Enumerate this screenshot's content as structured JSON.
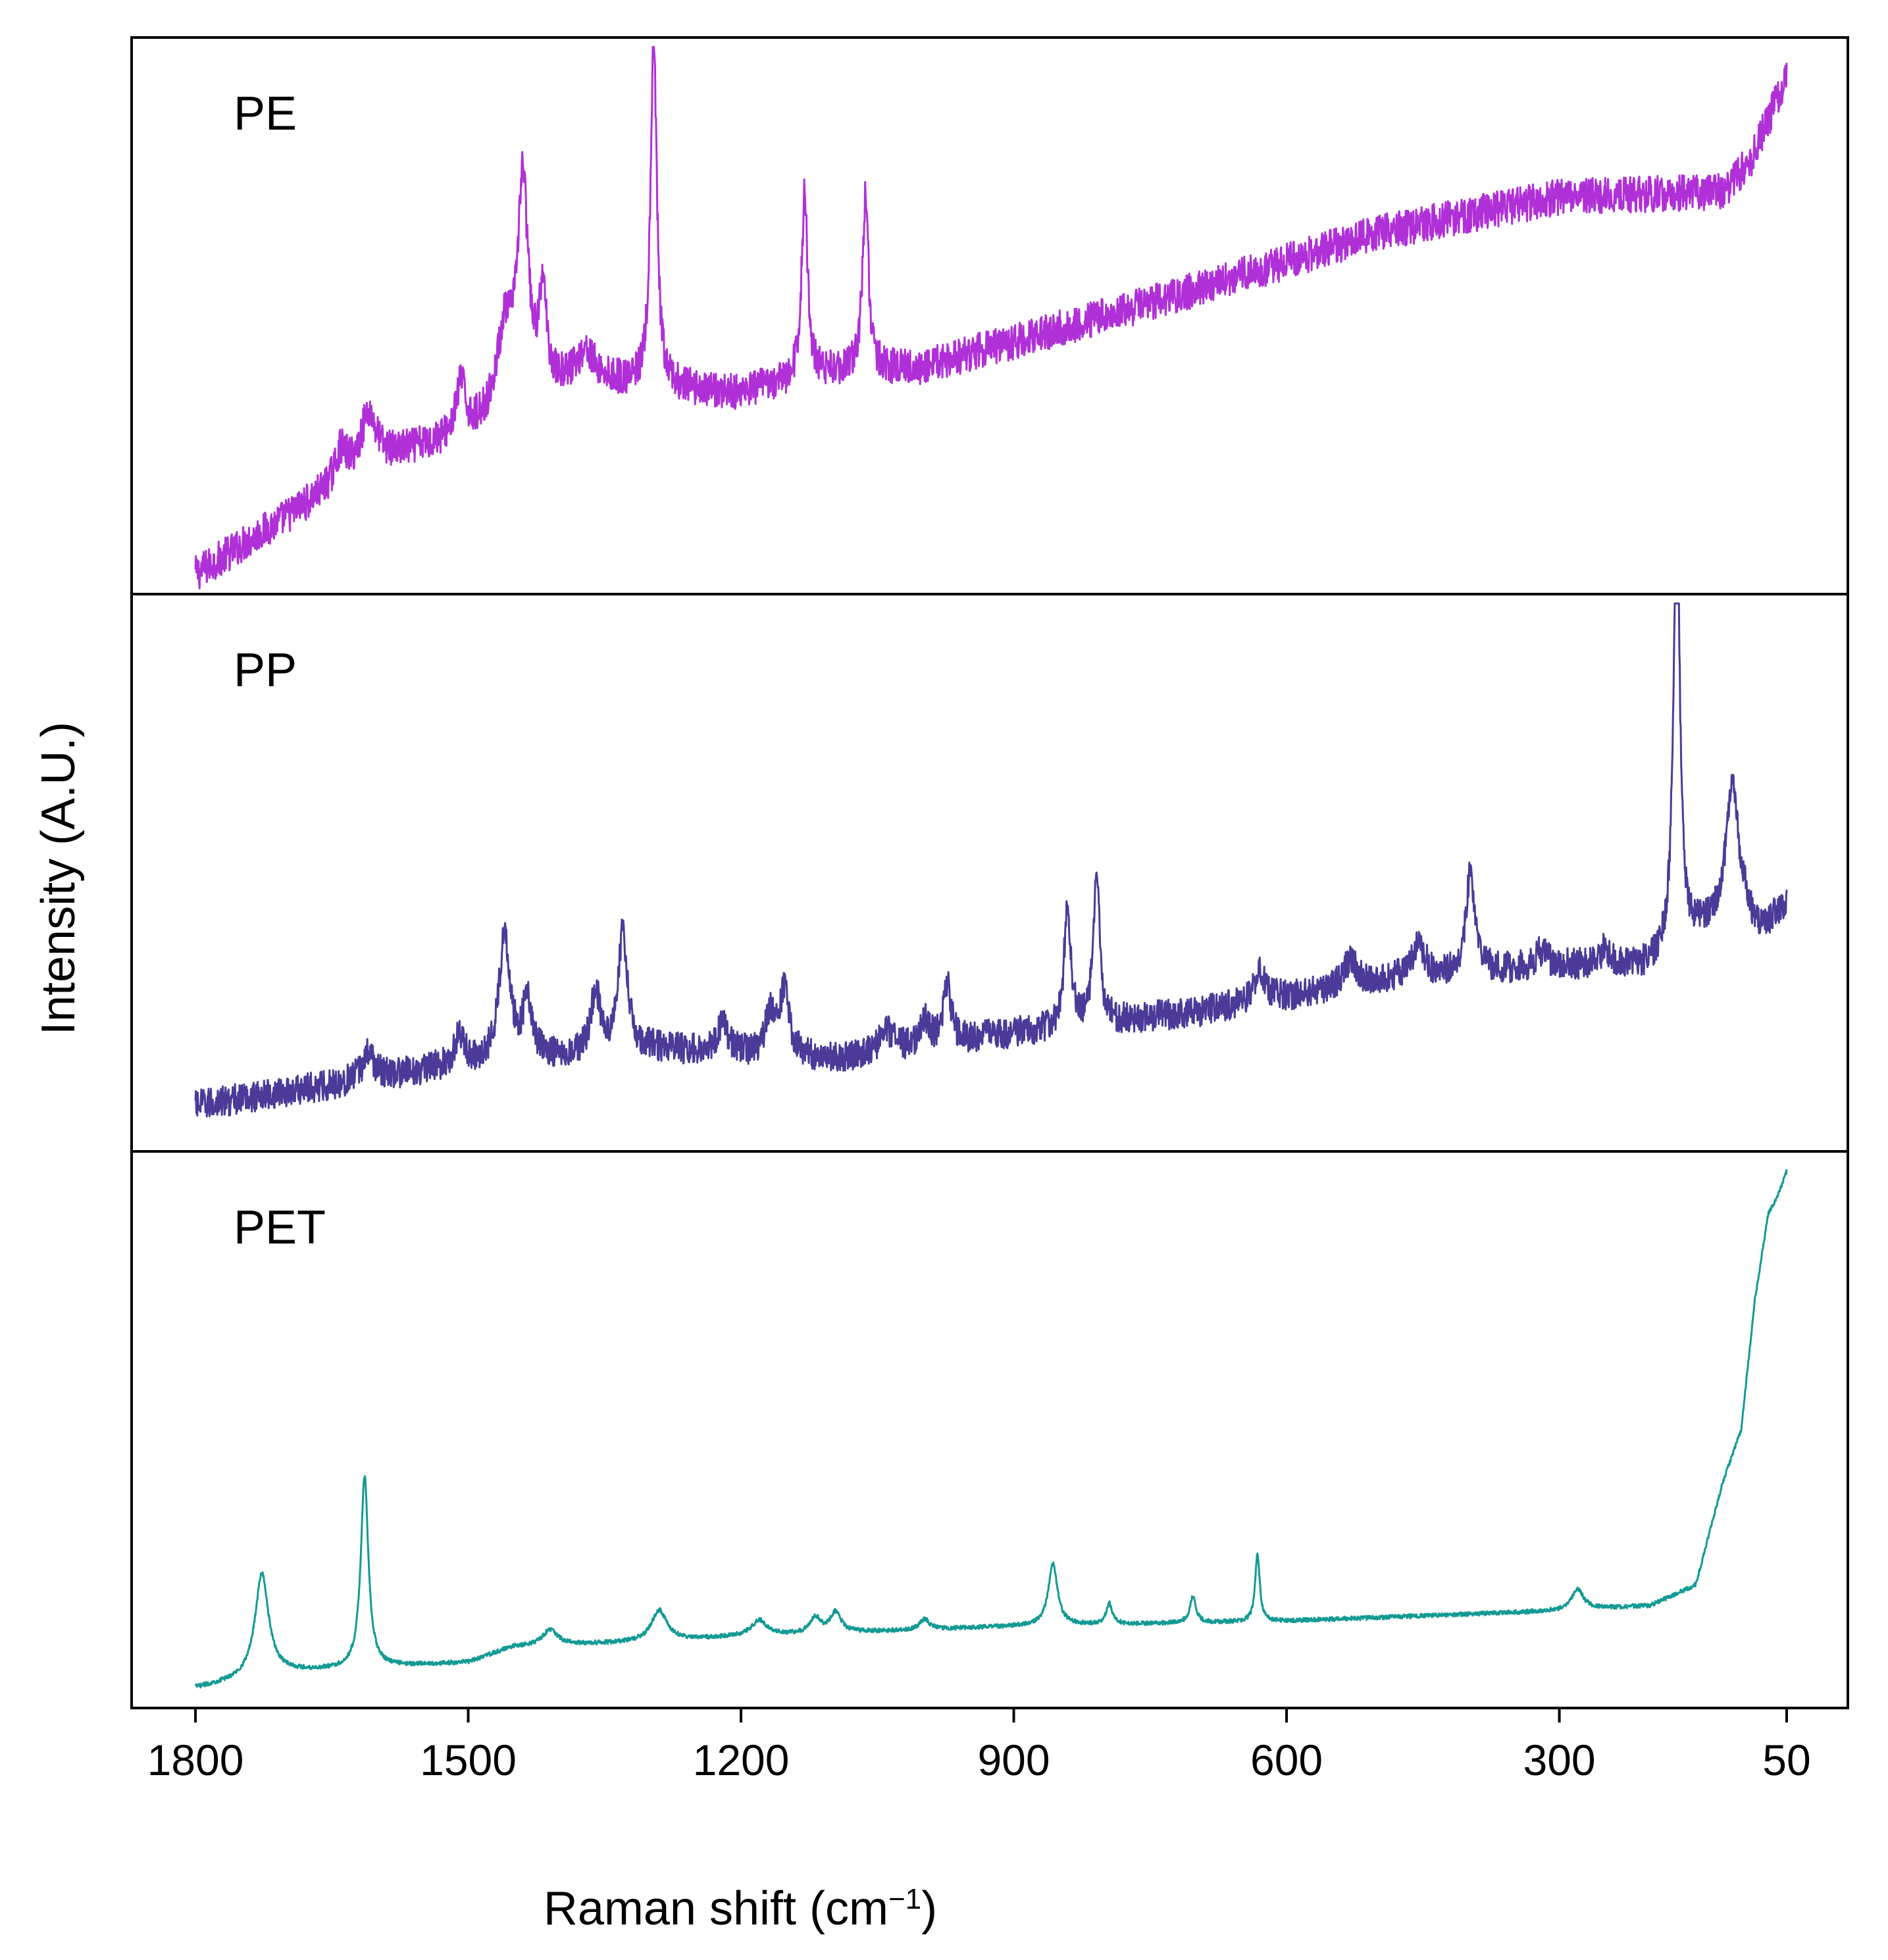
{
  "chart_data": {
    "type": "line",
    "layout": "stacked-panels",
    "xlabel": "Raman shift (cm",
    "xlabel_superscript": "−1",
    "xlabel_suffix": ")",
    "ylabel": "Intensity (A.U.)",
    "x_reversed": true,
    "xlim": [
      1800,
      50
    ],
    "xticks": [
      1800,
      1500,
      1200,
      900,
      600,
      300,
      50
    ],
    "grid": false,
    "legend": "none",
    "panels": [
      {
        "label": "PE",
        "color": "#B030D8",
        "noise": 0.035,
        "baseline": [
          [
            1800,
            0.0
          ],
          [
            1600,
            0.22
          ],
          [
            1500,
            0.27
          ],
          [
            1450,
            0.32
          ],
          [
            1380,
            0.38
          ],
          [
            1300,
            0.36
          ],
          [
            1200,
            0.35
          ],
          [
            1100,
            0.39
          ],
          [
            1000,
            0.4
          ],
          [
            900,
            0.45
          ],
          [
            700,
            0.55
          ],
          [
            500,
            0.66
          ],
          [
            300,
            0.73
          ],
          [
            120,
            0.74
          ],
          [
            90,
            0.8
          ],
          [
            60,
            0.92
          ],
          [
            50,
            0.97
          ]
        ],
        "peaks": [
          {
            "pos": 1640,
            "height": 0.06,
            "width": 8
          },
          {
            "pos": 1610,
            "height": 0.1,
            "width": 10
          },
          {
            "pos": 1508,
            "height": 0.1,
            "width": 6
          },
          {
            "pos": 1460,
            "height": 0.15,
            "width": 10
          },
          {
            "pos": 1440,
            "height": 0.42,
            "width": 7
          },
          {
            "pos": 1418,
            "height": 0.18,
            "width": 5
          },
          {
            "pos": 1370,
            "height": 0.05,
            "width": 10
          },
          {
            "pos": 1296,
            "height": 0.68,
            "width": 4
          },
          {
            "pos": 1130,
            "height": 0.36,
            "width": 4
          },
          {
            "pos": 1063,
            "height": 0.34,
            "width": 4
          }
        ]
      },
      {
        "label": "PP",
        "color": "#4B3A98",
        "noise": 0.03,
        "baseline": [
          [
            1800,
            0.05
          ],
          [
            1500,
            0.13
          ],
          [
            1300,
            0.16
          ],
          [
            1100,
            0.14
          ],
          [
            900,
            0.19
          ],
          [
            700,
            0.23
          ],
          [
            500,
            0.29
          ],
          [
            300,
            0.32
          ],
          [
            200,
            0.32
          ],
          [
            150,
            0.38
          ],
          [
            100,
            0.43
          ],
          [
            80,
            0.38
          ],
          [
            50,
            0.44
          ]
        ],
        "peaks": [
          {
            "pos": 1610,
            "height": 0.05,
            "width": 8
          },
          {
            "pos": 1510,
            "height": 0.06,
            "width": 6
          },
          {
            "pos": 1460,
            "height": 0.25,
            "width": 7
          },
          {
            "pos": 1435,
            "height": 0.11,
            "width": 6
          },
          {
            "pos": 1360,
            "height": 0.12,
            "width": 6
          },
          {
            "pos": 1330,
            "height": 0.23,
            "width": 6
          },
          {
            "pos": 1220,
            "height": 0.06,
            "width": 6
          },
          {
            "pos": 1168,
            "height": 0.08,
            "width": 6
          },
          {
            "pos": 1152,
            "height": 0.13,
            "width": 6
          },
          {
            "pos": 1040,
            "height": 0.04,
            "width": 8
          },
          {
            "pos": 998,
            "height": 0.05,
            "width": 6
          },
          {
            "pos": 973,
            "height": 0.11,
            "width": 5
          },
          {
            "pos": 841,
            "height": 0.25,
            "width": 4
          },
          {
            "pos": 809,
            "height": 0.3,
            "width": 4
          },
          {
            "pos": 630,
            "height": 0.06,
            "width": 8
          },
          {
            "pos": 530,
            "height": 0.05,
            "width": 8
          },
          {
            "pos": 455,
            "height": 0.07,
            "width": 8
          },
          {
            "pos": 398,
            "height": 0.19,
            "width": 6
          },
          {
            "pos": 320,
            "height": 0.03,
            "width": 8
          },
          {
            "pos": 250,
            "height": 0.03,
            "width": 6
          },
          {
            "pos": 171,
            "height": 0.9,
            "width": 4
          },
          {
            "pos": 110,
            "height": 0.25,
            "width": 8
          }
        ]
      },
      {
        "label": "PET",
        "color": "#139A94",
        "noise": 0.004,
        "baseline": [
          [
            1800,
            0.0
          ],
          [
            1700,
            0.03
          ],
          [
            1500,
            0.05
          ],
          [
            1450,
            0.08
          ],
          [
            1300,
            0.09
          ],
          [
            1200,
            0.1
          ],
          [
            900,
            0.12
          ],
          [
            600,
            0.13
          ],
          [
            300,
            0.15
          ],
          [
            200,
            0.16
          ],
          [
            150,
            0.2
          ],
          [
            120,
            0.4
          ],
          [
            100,
            0.5
          ],
          [
            85,
            0.75
          ],
          [
            70,
            0.92
          ],
          [
            60,
            0.95
          ],
          [
            50,
            1.0
          ]
        ],
        "peaks": [
          {
            "pos": 1727,
            "height": 0.2,
            "width": 9
          },
          {
            "pos": 1614,
            "height": 0.37,
            "width": 5
          },
          {
            "pos": 1410,
            "height": 0.03,
            "width": 10
          },
          {
            "pos": 1290,
            "height": 0.06,
            "width": 10
          },
          {
            "pos": 1180,
            "height": 0.03,
            "width": 10
          },
          {
            "pos": 1118,
            "height": 0.03,
            "width": 7
          },
          {
            "pos": 1096,
            "height": 0.04,
            "width": 7
          },
          {
            "pos": 998,
            "height": 0.02,
            "width": 6
          },
          {
            "pos": 857,
            "height": 0.12,
            "width": 6
          },
          {
            "pos": 795,
            "height": 0.04,
            "width": 4
          },
          {
            "pos": 703,
            "height": 0.05,
            "width": 4
          },
          {
            "pos": 632,
            "height": 0.13,
            "width": 3
          },
          {
            "pos": 280,
            "height": 0.04,
            "width": 8
          }
        ]
      }
    ]
  }
}
